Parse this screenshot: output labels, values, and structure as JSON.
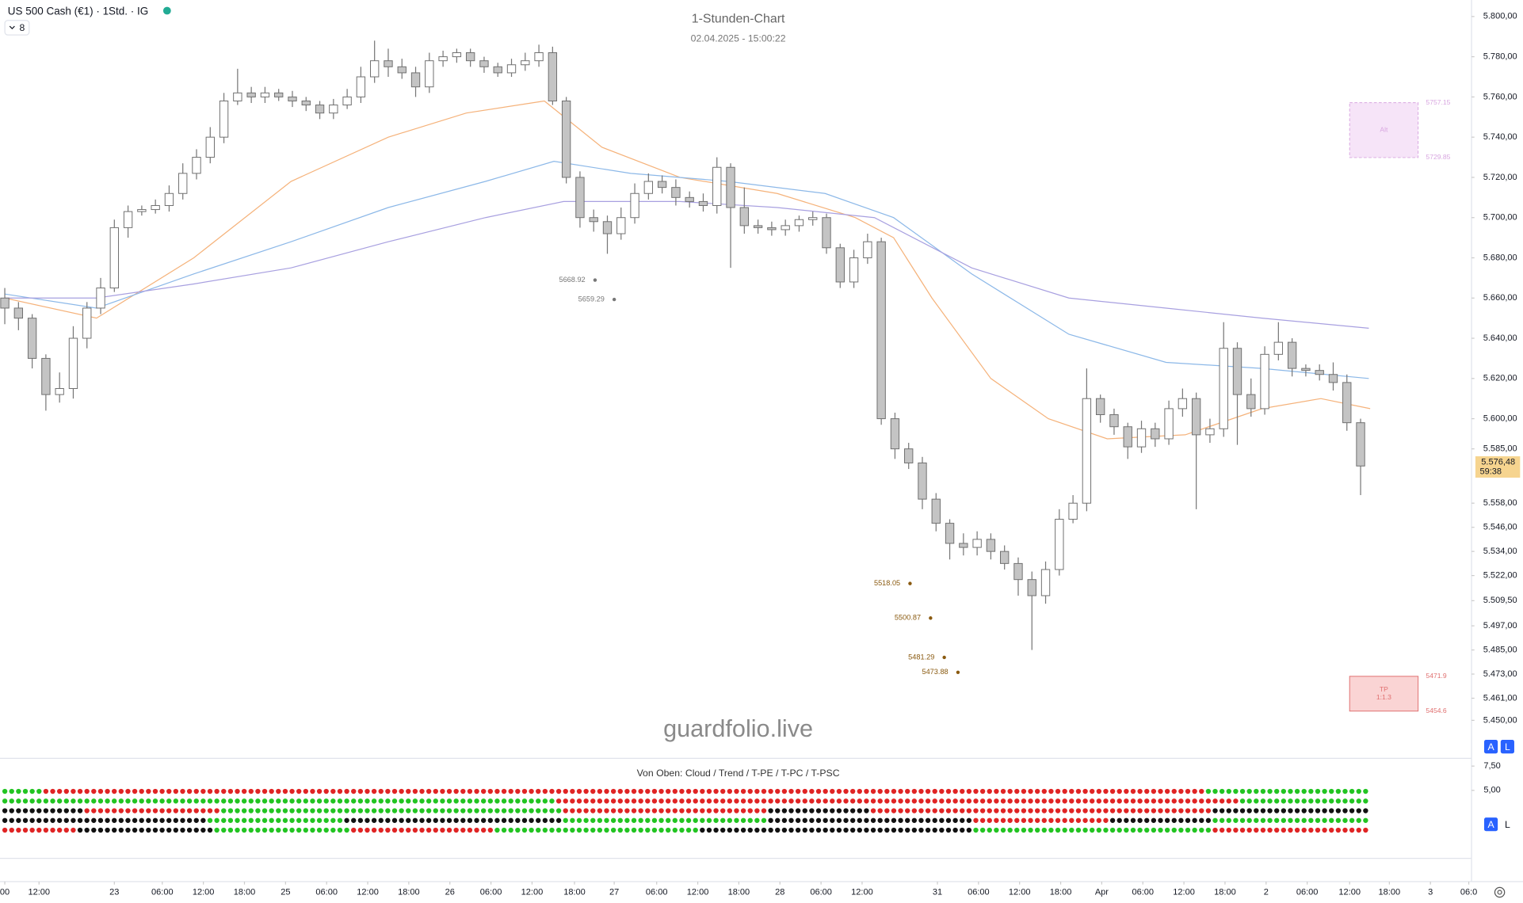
{
  "header": {
    "symbol": "US 500 Cash (€1) · 1Std. · IG",
    "indicator_count": 8
  },
  "chart_data": {
    "type": "candlestick",
    "title": "1-Stunden-Chart",
    "subtitle": "02.04.2025 - 15:00:22",
    "watermark": "guardfolio.live",
    "up_color": "#ffffff",
    "down_color": "#c4c4c4",
    "open": [
      5660,
      5655,
      5650,
      5630,
      5612,
      5615,
      5640,
      5655,
      5665,
      5695,
      5703,
      5704,
      5706,
      5712,
      5722,
      5730,
      5740,
      5758,
      5762,
      5760,
      5762,
      5760,
      5758,
      5756,
      5752,
      5756,
      5760,
      5770,
      5778,
      5775,
      5772,
      5765,
      5778,
      5780,
      5782,
      5778,
      5775,
      5772,
      5776,
      5778,
      5782,
      5758,
      5720,
      5700,
      5698,
      5692,
      5700,
      5712,
      5718,
      5715,
      5710,
      5708,
      5706,
      5725,
      5705,
      5696,
      5695,
      5694,
      5696,
      5699,
      5700,
      5685,
      5668,
      5680,
      5688,
      5600,
      5585,
      5578,
      5560,
      5548,
      5538,
      5536,
      5540,
      5534,
      5528,
      5520,
      5512,
      5525,
      5550,
      5558,
      5610,
      5602,
      5596,
      5586,
      5595,
      5590,
      5605,
      5610,
      5592,
      5595,
      5635,
      5612,
      5605,
      5632,
      5638,
      5625,
      5624,
      5622,
      5618,
      5598
    ],
    "high": [
      5665,
      5658,
      5652,
      5632,
      5623,
      5646,
      5658,
      5670,
      5699,
      5706,
      5706,
      5709,
      5716,
      5727,
      5734,
      5745,
      5762,
      5774,
      5765,
      5765,
      5764,
      5763,
      5760,
      5758,
      5759,
      5764,
      5775,
      5788,
      5784,
      5779,
      5775,
      5782,
      5783,
      5784,
      5784,
      5780,
      5777,
      5779,
      5782,
      5786,
      5785,
      5760,
      5723,
      5704,
      5701,
      5705,
      5717,
      5722,
      5721,
      5719,
      5713,
      5712,
      5730,
      5727,
      5715,
      5699,
      5698,
      5699,
      5701,
      5703,
      5702,
      5687,
      5684,
      5692,
      5690,
      5603,
      5588,
      5581,
      5563,
      5550,
      5543,
      5544,
      5543,
      5537,
      5531,
      5524,
      5529,
      5555,
      5562,
      5625,
      5612,
      5605,
      5598,
      5599,
      5598,
      5609,
      5615,
      5613,
      5600,
      5648,
      5638,
      5620,
      5636,
      5648,
      5640,
      5627,
      5627,
      5628,
      5622,
      5600
    ],
    "low": [
      5647,
      5644,
      5625,
      5604,
      5608,
      5610,
      5635,
      5652,
      5663,
      5690,
      5701,
      5702,
      5703,
      5709,
      5719,
      5727,
      5737,
      5756,
      5757,
      5757,
      5758,
      5755,
      5753,
      5749,
      5749,
      5754,
      5757,
      5767,
      5770,
      5769,
      5760,
      5762,
      5775,
      5777,
      5775,
      5772,
      5770,
      5770,
      5773,
      5775,
      5756,
      5717,
      5695,
      5693,
      5682,
      5689,
      5697,
      5709,
      5712,
      5706,
      5705,
      5703,
      5702,
      5675,
      5692,
      5692,
      5691,
      5691,
      5693,
      5696,
      5682,
      5665,
      5665,
      5677,
      5597,
      5580,
      5575,
      5555,
      5544,
      5530,
      5532,
      5532,
      5530,
      5525,
      5512,
      5485,
      5508,
      5522,
      5548,
      5554,
      5598,
      5592,
      5580,
      5583,
      5586,
      5587,
      5601,
      5555,
      5588,
      5591,
      5587,
      5601,
      5602,
      5629,
      5621,
      5621,
      5619,
      5614,
      5594,
      5562
    ],
    "close": [
      5655,
      5650,
      5630,
      5612,
      5615,
      5640,
      5655,
      5665,
      5695,
      5703,
      5704,
      5706,
      5712,
      5722,
      5730,
      5740,
      5758,
      5762,
      5760,
      5762,
      5760,
      5758,
      5756,
      5752,
      5756,
      5760,
      5770,
      5778,
      5775,
      5772,
      5765,
      5778,
      5780,
      5782,
      5778,
      5775,
      5772,
      5776,
      5778,
      5782,
      5758,
      5720,
      5700,
      5698,
      5692,
      5700,
      5712,
      5718,
      5715,
      5710,
      5708,
      5706,
      5725,
      5705,
      5696,
      5695,
      5694,
      5696,
      5699,
      5700,
      5685,
      5668,
      5680,
      5688,
      5600,
      5585,
      5578,
      5560,
      5548,
      5538,
      5536,
      5540,
      5534,
      5528,
      5520,
      5512,
      5525,
      5550,
      5558,
      5610,
      5602,
      5596,
      5586,
      5595,
      5590,
      5605,
      5610,
      5592,
      5595,
      5635,
      5612,
      5605,
      5632,
      5638,
      5625,
      5624,
      5622,
      5618,
      5598,
      5576.48
    ],
    "series": [
      {
        "color": "#f5b27a",
        "x": [
          0,
          6.7,
          13.8,
          20.9,
          28,
          33.7,
          39.4,
          43.6,
          49.3,
          56.4,
          62.1,
          64.9,
          67.7,
          72,
          76.2,
          80.5,
          86.2,
          91.8,
          96.1,
          99.7
        ],
        "values": [
          5660,
          5650,
          5680,
          5718,
          5740,
          5752,
          5758,
          5735,
          5720,
          5712,
          5700,
          5690,
          5660,
          5620,
          5600,
          5590,
          5592,
          5605,
          5610,
          5605
        ]
      },
      {
        "color": "#8cb8e8",
        "x": [
          0,
          6.7,
          13.8,
          20.9,
          28,
          35.1,
          40.1,
          45.7,
          52.8,
          59.9,
          64.9,
          70.6,
          77.7,
          84.8,
          91.8,
          99.6
        ],
        "values": [
          5662,
          5655,
          5672,
          5688,
          5705,
          5718,
          5728,
          5722,
          5718,
          5712,
          5700,
          5672,
          5642,
          5628,
          5625,
          5620
        ]
      },
      {
        "color": "#a8a0e0",
        "x": [
          0,
          6.7,
          13.8,
          20.9,
          28,
          35.1,
          40.8,
          49.3,
          56.4,
          63.5,
          70.6,
          77.7,
          84.8,
          91.8,
          99.6
        ],
        "values": [
          5660,
          5660,
          5667,
          5675,
          5688,
          5700,
          5708,
          5708,
          5705,
          5700,
          5675,
          5660,
          5655,
          5650,
          5645
        ]
      }
    ],
    "annotations": [
      {
        "value": 5668.92,
        "x": 43.1,
        "color": "#777777"
      },
      {
        "value": 5659.29,
        "x": 44.5,
        "color": "#777777"
      },
      {
        "value": 5518.05,
        "x": 66.1,
        "color": "#8a5a10"
      },
      {
        "value": 5500.87,
        "x": 67.6,
        "color": "#8a5a10"
      },
      {
        "value": 5481.29,
        "x": 68.6,
        "color": "#8a5a10"
      },
      {
        "value": 5473.88,
        "x": 69.6,
        "color": "#8a5a10"
      }
    ],
    "zones": [
      {
        "text": "Alt",
        "top": 5757.15,
        "bottom": 5729.85,
        "x": [
          98.2,
          103.2
        ],
        "fill": "#f6e4f8",
        "stroke": "#d8a6e0"
      },
      {
        "text": "TP",
        "ratio": "1:1.3",
        "top": 5471.9,
        "bottom": 5454.6,
        "x": [
          98.2,
          103.2
        ],
        "fill": "#fad4d4",
        "stroke": "#e07070"
      }
    ],
    "last_price": {
      "label": "5.576,48",
      "countdown": "59:38"
    },
    "xlim": [
      -0.35,
      107.1
    ],
    "ylim": [
      5431.6,
      5808.2
    ],
    "yticks": [
      {
        "value": 5800,
        "label": "5.800,00"
      },
      {
        "value": 5780,
        "label": "5.780,00"
      },
      {
        "value": 5760,
        "label": "5.760,00"
      },
      {
        "value": 5740,
        "label": "5.740,00"
      },
      {
        "value": 5720,
        "label": "5.720,00"
      },
      {
        "value": 5700,
        "label": "5.700,00"
      },
      {
        "value": 5680,
        "label": "5.680,00"
      },
      {
        "value": 5660,
        "label": "5.660,00"
      },
      {
        "value": 5640,
        "label": "5.640,00"
      },
      {
        "value": 5620,
        "label": "5.620,00"
      },
      {
        "value": 5600,
        "label": "5.600,00"
      },
      {
        "value": 5585,
        "label": "5.585,00"
      },
      {
        "value": 5558,
        "label": "5.558,00"
      },
      {
        "value": 5546,
        "label": "5.546,00"
      },
      {
        "value": 5534,
        "label": "5.534,00"
      },
      {
        "value": 5522,
        "label": "5.522,00"
      },
      {
        "value": 5509.5,
        "label": "5.509,50"
      },
      {
        "value": 5497,
        "label": "5.497,00"
      },
      {
        "value": 5485,
        "label": "5.485,00"
      },
      {
        "value": 5473,
        "label": "5.473,00"
      },
      {
        "value": 5461,
        "label": "5.461,00"
      },
      {
        "value": 5450,
        "label": "5.450,00"
      }
    ],
    "xticks": [
      {
        "value": 0,
        "label": "00"
      },
      {
        "value": 2.5,
        "label": "12:00"
      },
      {
        "value": 8,
        "label": "23"
      },
      {
        "value": 11.5,
        "label": "06:00"
      },
      {
        "value": 14.5,
        "label": "12:00"
      },
      {
        "value": 17.5,
        "label": "18:00"
      },
      {
        "value": 20.5,
        "label": "25"
      },
      {
        "value": 23.5,
        "label": "06:00"
      },
      {
        "value": 26.5,
        "label": "12:00"
      },
      {
        "value": 29.5,
        "label": "18:00"
      },
      {
        "value": 32.5,
        "label": "26"
      },
      {
        "value": 35.5,
        "label": "06:00"
      },
      {
        "value": 38.5,
        "label": "12:00"
      },
      {
        "value": 41.6,
        "label": "18:00"
      },
      {
        "value": 44.5,
        "label": "27"
      },
      {
        "value": 47.6,
        "label": "06:00"
      },
      {
        "value": 50.6,
        "label": "12:00"
      },
      {
        "value": 53.6,
        "label": "18:00"
      },
      {
        "value": 56.6,
        "label": "28"
      },
      {
        "value": 59.6,
        "label": "06:00"
      },
      {
        "value": 62.6,
        "label": "12:00"
      },
      {
        "value": 68.1,
        "label": "31"
      },
      {
        "value": 71.1,
        "label": "06:00"
      },
      {
        "value": 74.1,
        "label": "12:00"
      },
      {
        "value": 77.1,
        "label": "18:00"
      },
      {
        "value": 80.1,
        "label": "Apr"
      },
      {
        "value": 83.1,
        "label": "06:00"
      },
      {
        "value": 86.1,
        "label": "12:00"
      },
      {
        "value": 89.1,
        "label": "18:00"
      },
      {
        "value": 92.1,
        "label": "2"
      },
      {
        "value": 95.1,
        "label": "06:00"
      },
      {
        "value": 98.2,
        "label": "12:00"
      },
      {
        "value": 101.1,
        "label": "18:00"
      },
      {
        "value": 104.1,
        "label": "3"
      },
      {
        "value": 106.9,
        "label": "06:0"
      }
    ]
  },
  "indicator": {
    "title": "Von Oben: Cloud / Trend / T-PE / T-PC / T-PSC",
    "ylim": [
      -2,
      8.3
    ],
    "yticks": [
      {
        "value": 7.5,
        "label": "7,50"
      },
      {
        "value": 5,
        "label": "5,00"
      }
    ],
    "rows": [
      [
        {
          "color": "#22c422",
          "count": 6
        },
        {
          "color": "#e02424",
          "count": 170
        },
        {
          "color": "#22c422",
          "count": 24
        }
      ],
      [
        {
          "color": "#22c422",
          "count": 81
        },
        {
          "color": "#e02424",
          "count": 100
        },
        {
          "color": "#22c422",
          "count": 19
        }
      ],
      [
        {
          "color": "#111111",
          "count": 12
        },
        {
          "color": "#e02424",
          "count": 20
        },
        {
          "color": "#22c422",
          "count": 50
        },
        {
          "color": "#e02424",
          "count": 30
        },
        {
          "color": "#111111",
          "count": 15
        },
        {
          "color": "#e02424",
          "count": 50
        },
        {
          "color": "#111111",
          "count": 23
        }
      ],
      [
        {
          "color": "#111111",
          "count": 30
        },
        {
          "color": "#22c422",
          "count": 20
        },
        {
          "color": "#111111",
          "count": 32
        },
        {
          "color": "#22c422",
          "count": 30
        },
        {
          "color": "#111111",
          "count": 30
        },
        {
          "color": "#e02424",
          "count": 20
        },
        {
          "color": "#111111",
          "count": 15
        },
        {
          "color": "#22c422",
          "count": 23
        }
      ],
      [
        {
          "color": "#e02424",
          "count": 11
        },
        {
          "color": "#111111",
          "count": 20
        },
        {
          "color": "#22c422",
          "count": 20
        },
        {
          "color": "#e02424",
          "count": 21
        },
        {
          "color": "#22c422",
          "count": 30
        },
        {
          "color": "#111111",
          "count": 40
        },
        {
          "color": "#22c422",
          "count": 35
        },
        {
          "color": "#e02424",
          "count": 23
        }
      ]
    ]
  }
}
